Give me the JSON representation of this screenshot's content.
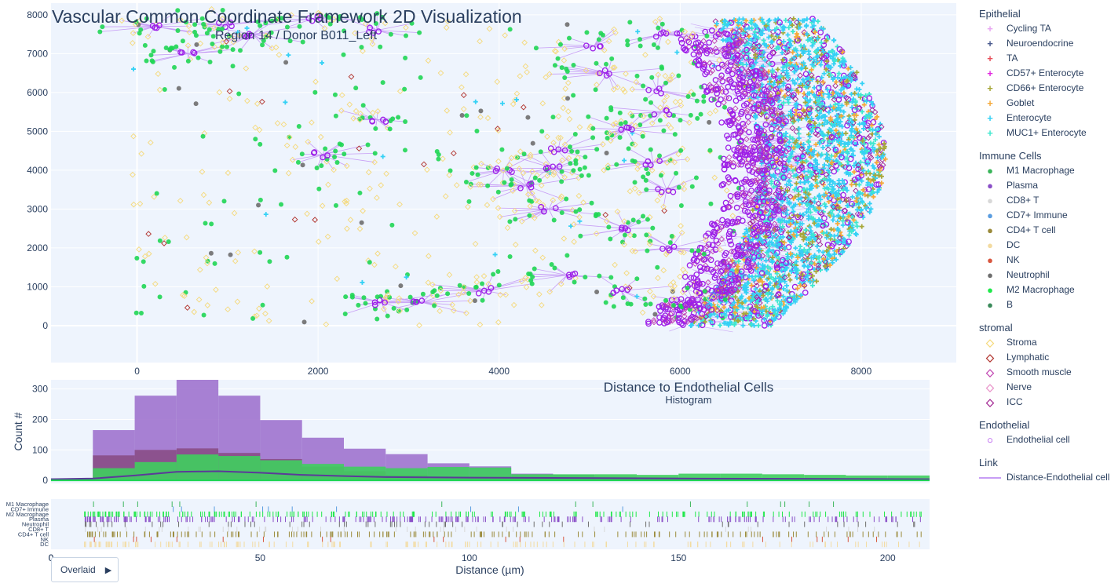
{
  "title": "Vascular Common Coordinate Framework 2D Visualization",
  "subtitle": "Region 14 / Donor B011_Left",
  "mode_button": {
    "label": "Overlaid",
    "arrow": "▶"
  },
  "colors": {
    "endothelial": "#9d1fe8",
    "link": "#c79df5",
    "stroma": "#f5d97a",
    "green": "#1fd654",
    "cyan": "#35d1f5",
    "histogram_purple": "#9a6bcb",
    "histogram_dark": "#8a4c86",
    "histogram_green": "#3fce5e",
    "kde_line": "#5b3a99",
    "plot_bg": "#eef4fd"
  },
  "legend": [
    {
      "title": "Epithelial",
      "items": [
        {
          "label": "Cycling TA",
          "symbol": "+",
          "color": "#e8a6f2"
        },
        {
          "label": "Neuroendocrine",
          "symbol": "+",
          "color": "#4a5a8e"
        },
        {
          "label": "TA",
          "symbol": "+",
          "color": "#e8505b"
        },
        {
          "label": "CD57+ Enterocyte",
          "symbol": "+",
          "color": "#e22be0"
        },
        {
          "label": "CD66+ Enterocyte",
          "symbol": "+",
          "color": "#a7a83a"
        },
        {
          "label": "Goblet",
          "symbol": "+",
          "color": "#f5a93a"
        },
        {
          "label": "Enterocyte",
          "symbol": "+",
          "color": "#35d1f5"
        },
        {
          "label": "MUC1+ Enterocyte",
          "symbol": "+",
          "color": "#3fe8cf"
        }
      ]
    },
    {
      "title": "Immune Cells",
      "items": [
        {
          "label": "M1 Macrophage",
          "symbol": "●",
          "color": "#3ab55a"
        },
        {
          "label": "Plasma",
          "symbol": "●",
          "color": "#8a4fc7"
        },
        {
          "label": "CD8+ T",
          "symbol": "●",
          "color": "#d8d8d8"
        },
        {
          "label": "CD7+ Immune",
          "symbol": "●",
          "color": "#5a9de0"
        },
        {
          "label": "CD4+ T cell",
          "symbol": "●",
          "color": "#9a8a3a"
        },
        {
          "label": "DC",
          "symbol": "●",
          "color": "#f3dba0"
        },
        {
          "label": "NK",
          "symbol": "●",
          "color": "#d8563f"
        },
        {
          "label": "Neutrophil",
          "symbol": "●",
          "color": "#6e6e6e"
        },
        {
          "label": "M2 Macrophage",
          "symbol": "●",
          "color": "#1fe84a"
        },
        {
          "label": "B",
          "symbol": "●",
          "color": "#3a8a5a"
        }
      ]
    },
    {
      "title": "stromal",
      "items": [
        {
          "label": "Stroma",
          "symbol": "◇",
          "color": "#f5d97a"
        },
        {
          "label": "Lymphatic",
          "symbol": "◇",
          "color": "#b0302a"
        },
        {
          "label": "Smooth muscle",
          "symbol": "◇",
          "color": "#c040b0"
        },
        {
          "label": "Nerve",
          "symbol": "◇",
          "color": "#e890c8"
        },
        {
          "label": "ICC",
          "symbol": "◇",
          "color": "#a02090"
        }
      ]
    },
    {
      "title": "Endothelial",
      "items": [
        {
          "label": "Endothelial cell",
          "symbol": "○",
          "color": "#9d1fe8"
        }
      ]
    },
    {
      "title": "Link",
      "items": [
        {
          "label": "Distance-Endothelial cell",
          "symbol": "line",
          "color": "#c79df5"
        }
      ]
    }
  ],
  "chart_data": [
    {
      "type": "scatter",
      "title": "Vascular Common Coordinate Framework 2D Visualization",
      "subtitle": "Region 14 / Donor B011_Left",
      "xlim": [
        -950,
        9050
      ],
      "ylim": [
        -950,
        8300
      ],
      "x_ticks": [
        0,
        2000,
        4000,
        6000,
        8000
      ],
      "y_ticks": [
        0,
        1000,
        2000,
        3000,
        4000,
        5000,
        6000,
        7000,
        8000
      ],
      "endothelial_clusters": [
        [
          200,
          7700
        ],
        [
          560,
          7000
        ],
        [
          1000,
          7750
        ],
        [
          1280,
          7500
        ],
        [
          1950,
          7900
        ],
        [
          2650,
          7600
        ],
        [
          2650,
          5300
        ],
        [
          2050,
          4400
        ],
        [
          2700,
          600
        ],
        [
          3150,
          600
        ],
        [
          3850,
          900
        ],
        [
          4050,
          4000
        ],
        [
          4300,
          3600
        ],
        [
          4600,
          4050
        ],
        [
          4650,
          4500
        ],
        [
          4550,
          3000
        ],
        [
          4750,
          1300
        ],
        [
          5800,
          7500
        ],
        [
          5200,
          6500
        ],
        [
          5750,
          6050
        ],
        [
          5400,
          5050
        ],
        [
          5800,
          5500
        ],
        [
          5850,
          3500
        ],
        [
          5400,
          2500
        ],
        [
          5700,
          4200
        ],
        [
          5050,
          7200
        ],
        [
          5350,
          900
        ],
        [
          5900,
          2000
        ],
        [
          6150,
          600
        ]
      ],
      "grid": true
    },
    {
      "type": "bar",
      "title": "Distance to Endothelial Cells",
      "subtitle": "Histogram",
      "ylabel": "Count #",
      "xlim": [
        0,
        210
      ],
      "ylim": [
        -10,
        330
      ],
      "y_ticks": [
        0,
        100,
        200,
        300
      ],
      "bin_width": 10,
      "bin_start": 10,
      "series": [
        {
          "name": "Plasma",
          "values": [
            165,
            278,
            330,
            278,
            198,
            140,
            104,
            86,
            56,
            46,
            22,
            18,
            12,
            10,
            8,
            6,
            4,
            3,
            2,
            2
          ]
        },
        {
          "name": "M1 Macrophage",
          "values": [
            82,
            100,
            105,
            90,
            70,
            45,
            30,
            18,
            12,
            8,
            6,
            5,
            4,
            3,
            2,
            2,
            1,
            1,
            1,
            1
          ]
        },
        {
          "name": "M2 Macrophage",
          "values": [
            40,
            60,
            85,
            80,
            66,
            54,
            45,
            40,
            44,
            42,
            20,
            20,
            20,
            18,
            22,
            22,
            20,
            18,
            16,
            16
          ]
        }
      ],
      "kde": [
        [
          0,
          4
        ],
        [
          10,
          6
        ],
        [
          20,
          16
        ],
        [
          30,
          28
        ],
        [
          40,
          30
        ],
        [
          50,
          25
        ],
        [
          60,
          18
        ],
        [
          70,
          14
        ],
        [
          80,
          11
        ],
        [
          90,
          10
        ],
        [
          100,
          9
        ],
        [
          120,
          8
        ],
        [
          150,
          6
        ],
        [
          180,
          5
        ],
        [
          210,
          4
        ]
      ]
    },
    {
      "type": "scatter",
      "xlabel": "Distance (µm)",
      "xlim": [
        0,
        210
      ],
      "x_ticks": [
        0,
        50,
        100,
        150,
        200
      ],
      "rug_rows": [
        {
          "name": "M1 Macrophage",
          "color": "#3ab55a",
          "density": 0.06
        },
        {
          "name": "CD7+ Immune",
          "color": "#5a9de0",
          "density": 0.04
        },
        {
          "name": "M2 Macrophage",
          "color": "#1fe84a",
          "density": 0.9
        },
        {
          "name": "Plasma",
          "color": "#8a4fc7",
          "density": 0.95
        },
        {
          "name": "Neutrophil",
          "color": "#6e6e6e",
          "density": 0.25
        },
        {
          "name": "CD8+ T",
          "color": "#d8d8d8",
          "density": 0.15
        },
        {
          "name": "CD4+ T cell",
          "color": "#9a8a3a",
          "density": 0.7
        },
        {
          "name": "NK",
          "color": "#d8563f",
          "density": 0.08
        },
        {
          "name": "DC",
          "color": "#f3dba0",
          "density": 0.6
        }
      ]
    }
  ]
}
